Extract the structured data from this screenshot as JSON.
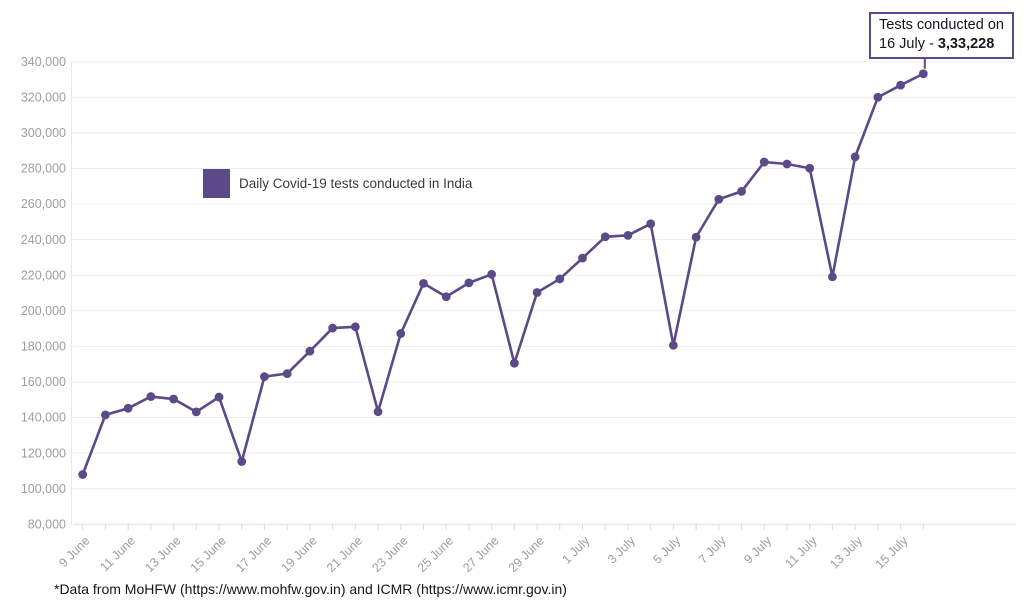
{
  "legend": {
    "label": "Daily Covid-19 tests conducted in India"
  },
  "annotation": {
    "line1": "Tests conducted on",
    "line2_prefix": "16 July - ",
    "line2_value": "3,33,228"
  },
  "footer": {
    "text": "*Data from MoHFW (https://www.mohfw.gov.in) and ICMR (https://www.icmr.gov.in)"
  },
  "colors": {
    "accent": "#5b4a87",
    "grid": "#ededed",
    "grid_bottom": "#e0e0e0",
    "axis_line": "#e7e7e7",
    "tick_mark": "#d9d9d9",
    "tick_label": "#9e9e9e"
  },
  "chart_data": {
    "type": "line",
    "title": "",
    "xlabel": "",
    "ylabel": "",
    "grid": "horizontal",
    "legend_position": "inside-top-left",
    "marker": "circle",
    "ylim": [
      80000,
      340000
    ],
    "ytick_step": 20000,
    "x": [
      "9 June",
      "10 June",
      "11 June",
      "12 June",
      "13 June",
      "14 June",
      "15 June",
      "16 June",
      "17 June",
      "18 June",
      "19 June",
      "20 June",
      "21 June",
      "22 June",
      "23 June",
      "24 June",
      "25 June",
      "26 June",
      "27 June",
      "28 June",
      "29 June",
      "30 June",
      "1 July",
      "2 July",
      "3 July",
      "4 July",
      "5 July",
      "6 July",
      "7 July",
      "8 July",
      "9 July",
      "10 July",
      "11 July",
      "12 July",
      "13 July",
      "14 July",
      "15 July",
      "16 July"
    ],
    "xtick_labels": [
      "9 June",
      "11 June",
      "13 June",
      "15 June",
      "17 June",
      "19 June",
      "21 June",
      "23 June",
      "25 June",
      "27 June",
      "29 June",
      "1 July",
      "3 July",
      "5 July",
      "7 July",
      "9 July",
      "11 July",
      "13 July",
      "15 July"
    ],
    "series": [
      {
        "name": "Daily Covid-19 tests conducted in India",
        "values": [
          108000,
          141500,
          145200,
          151800,
          150400,
          143200,
          151500,
          115300,
          163000,
          164700,
          177300,
          190300,
          191000,
          143300,
          187200,
          215400,
          207900,
          215700,
          220500,
          170500,
          210300,
          217900,
          229600,
          241600,
          242400,
          248900,
          180600,
          241400,
          262700,
          267100,
          283600,
          282500,
          280100,
          219100,
          286500,
          320000,
          326800,
          333228
        ]
      }
    ]
  }
}
